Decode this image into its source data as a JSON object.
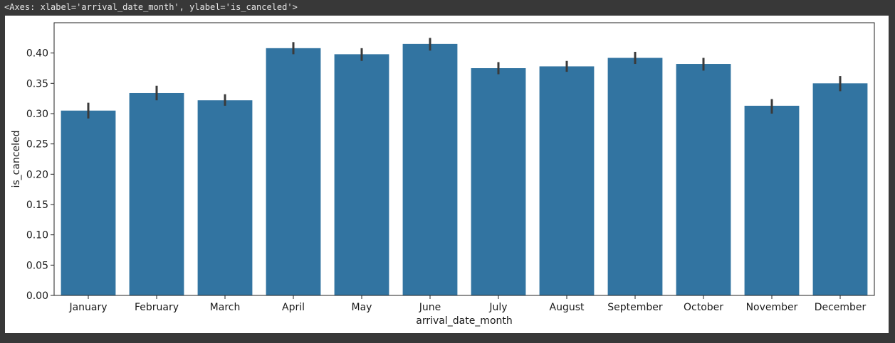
{
  "output_repr": "<Axes: xlabel='arrival_date_month', ylabel='is_canceled'>",
  "chart_data": {
    "type": "bar",
    "title": "",
    "xlabel": "arrival_date_month",
    "ylabel": "is_canceled",
    "ylim": [
      0,
      0.45
    ],
    "yticks": [
      "0.00",
      "0.05",
      "0.10",
      "0.15",
      "0.20",
      "0.25",
      "0.30",
      "0.35",
      "0.40"
    ],
    "categories": [
      "January",
      "February",
      "March",
      "April",
      "May",
      "June",
      "July",
      "August",
      "September",
      "October",
      "November",
      "December"
    ],
    "values": [
      0.305,
      0.334,
      0.322,
      0.408,
      0.398,
      0.415,
      0.375,
      0.378,
      0.392,
      0.382,
      0.313,
      0.35
    ],
    "error_low": [
      0.292,
      0.322,
      0.313,
      0.398,
      0.387,
      0.404,
      0.365,
      0.369,
      0.382,
      0.371,
      0.3,
      0.337
    ],
    "error_high": [
      0.318,
      0.346,
      0.332,
      0.418,
      0.408,
      0.425,
      0.385,
      0.387,
      0.402,
      0.392,
      0.324,
      0.362
    ],
    "bar_color": "#3274a1",
    "errorbar_color": "#3a3a3a",
    "grid": false,
    "legend": "none"
  }
}
